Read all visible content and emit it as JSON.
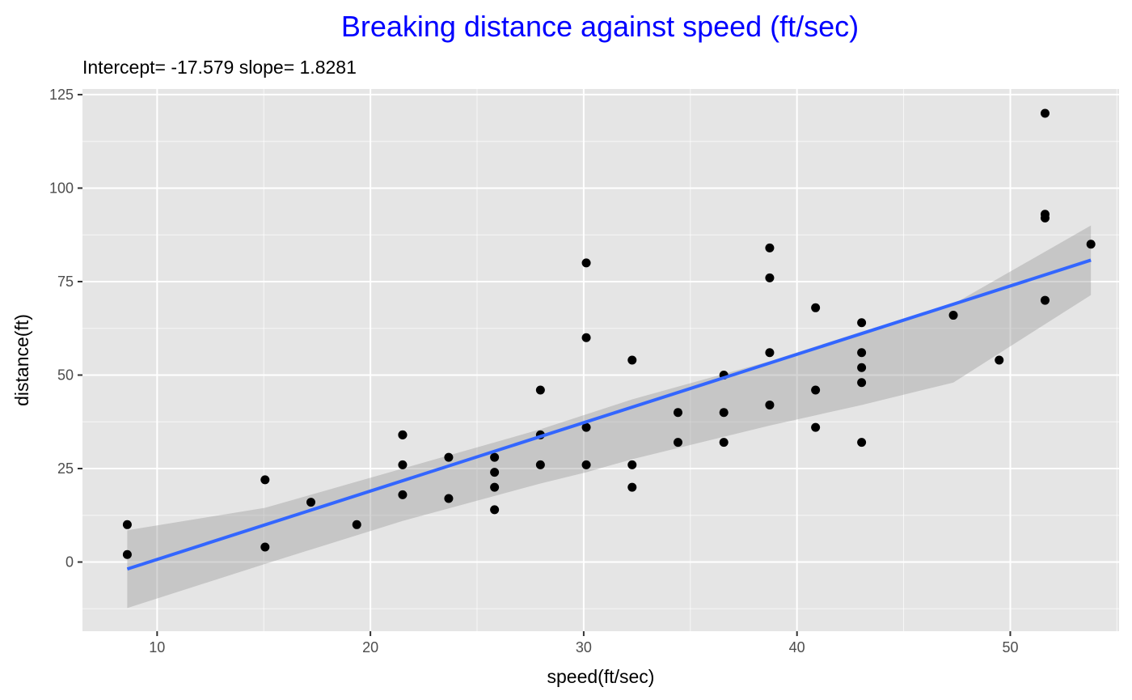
{
  "chart_data": {
    "type": "scatter",
    "title": "Breaking distance against speed (ft/sec)",
    "subtitle": "Intercept= -17.579 slope= 1.8281",
    "xlabel": "speed(ft/sec)",
    "ylabel": "distance(ft)",
    "xlim": [
      6.5,
      55.1
    ],
    "ylim": [
      -18.5,
      126.5
    ],
    "x_ticks": [
      10,
      20,
      30,
      40,
      50
    ],
    "y_ticks": [
      0,
      25,
      50,
      75,
      100,
      125
    ],
    "x_tick_labels": [
      "10",
      "20",
      "30",
      "40",
      "50"
    ],
    "y_tick_labels": [
      "0",
      "25",
      "50",
      "75",
      "100",
      "125"
    ],
    "grid": true,
    "legend": "none",
    "colors": {
      "title": "#0000ff",
      "panel_background": "#e5e5e5",
      "grid": "#ffffff",
      "points": "#000000",
      "fit_line": "#3366ff",
      "confidence_band": "#999999"
    },
    "series": [
      {
        "type": "scatter",
        "x": [
          8.6,
          8.6,
          15.06,
          15.06,
          17.21,
          19.36,
          21.51,
          21.51,
          21.51,
          21.51,
          23.67,
          23.67,
          25.82,
          25.82,
          25.82,
          25.82,
          27.97,
          27.97,
          27.97,
          30.12,
          30.12,
          30.12,
          30.12,
          32.27,
          32.27,
          32.27,
          34.42,
          34.42,
          36.57,
          36.57,
          36.57,
          38.72,
          38.72,
          38.72,
          38.72,
          40.87,
          40.87,
          40.87,
          43.03,
          43.03,
          43.03,
          43.03,
          43.03,
          47.33,
          49.48,
          51.63,
          51.63,
          51.63,
          51.63,
          53.78
        ],
        "y": [
          2,
          10,
          4,
          22,
          16,
          10,
          18,
          26,
          34,
          34,
          17,
          28,
          14,
          20,
          24,
          28,
          26,
          34,
          46,
          26,
          36,
          60,
          80,
          20,
          26,
          54,
          32,
          40,
          32,
          40,
          50,
          42,
          56,
          76,
          84,
          36,
          46,
          68,
          32,
          48,
          52,
          56,
          64,
          66,
          54,
          70,
          92,
          93,
          120,
          85
        ]
      },
      {
        "type": "line",
        "name": "linear fit",
        "x": [
          8.6,
          53.78
        ],
        "y": [
          -1.857,
          80.74
        ]
      },
      {
        "type": "area",
        "name": "confidence band",
        "x": [
          8.6,
          15.06,
          21.51,
          27.97,
          30.12,
          32.27,
          38.72,
          43.03,
          47.33,
          53.78
        ],
        "y_low": [
          -12.3,
          -0.5,
          11.0,
          21.0,
          24.0,
          27.5,
          36.5,
          42.0,
          48.0,
          71.4
        ],
        "y_high": [
          8.5,
          14.5,
          25.0,
          35.5,
          39.5,
          43.5,
          53.7,
          61.6,
          69.0,
          90.0
        ]
      }
    ]
  }
}
